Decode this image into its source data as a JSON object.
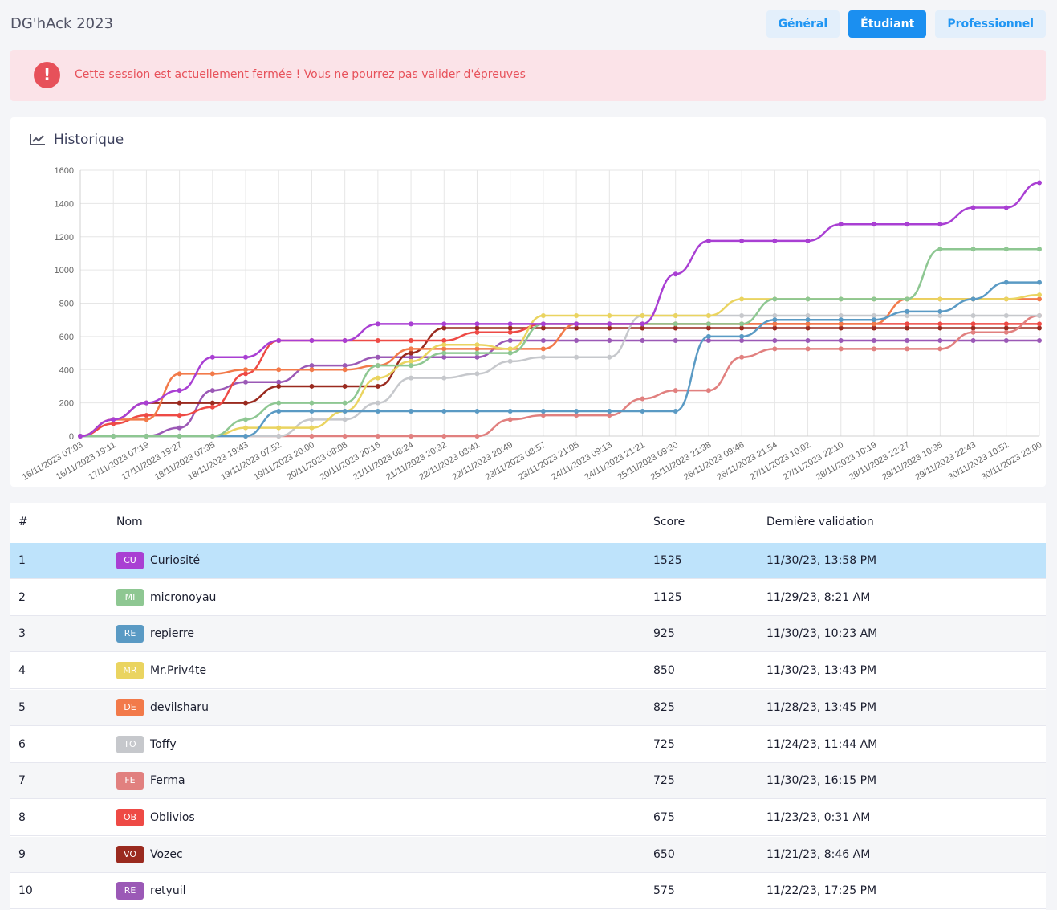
{
  "header": {
    "title": "DG'hAck 2023",
    "buttons": [
      {
        "label": "Général",
        "active": false
      },
      {
        "label": "Étudiant",
        "active": true
      },
      {
        "label": "Professionnel",
        "active": false
      }
    ]
  },
  "alert": {
    "icon": "exclamation-icon",
    "text": "Cette session est actuellement fermée ! Vous ne pourrez pas valider d'épreuves"
  },
  "chart_card": {
    "title": "Historique",
    "icon": "line-chart-icon"
  },
  "chart_data": {
    "type": "line",
    "ylim": [
      0,
      1600
    ],
    "yticks": [
      0,
      200,
      400,
      600,
      800,
      1000,
      1200,
      1400,
      1600
    ],
    "categories": [
      "16/11/2023 07:03",
      "16/11/2023 19:11",
      "17/11/2023 07:19",
      "17/11/2023 19:27",
      "18/11/2023 07:35",
      "18/11/2023 19:43",
      "19/11/2023 07:52",
      "19/11/2023 20:00",
      "20/11/2023 08:08",
      "20/11/2023 20:16",
      "21/11/2023 08:24",
      "21/11/2023 20:32",
      "22/11/2023 08:41",
      "22/11/2023 20:49",
      "23/11/2023 08:57",
      "23/11/2023 21:05",
      "24/11/2023 09:13",
      "24/11/2023 21:21",
      "25/11/2023 09:30",
      "25/11/2023 21:38",
      "26/11/2023 09:46",
      "26/11/2023 21:54",
      "27/11/2023 10:02",
      "27/11/2023 22:10",
      "28/11/2023 10:19",
      "28/11/2023 22:27",
      "29/11/2023 10:35",
      "29/11/2023 22:43",
      "30/11/2023 10:51",
      "30/11/2023 23:00"
    ],
    "series": [
      {
        "name": "Curiosité",
        "color": "#a93fd3",
        "values": [
          0,
          100,
          200,
          275,
          475,
          475,
          575,
          575,
          575,
          675,
          675,
          675,
          675,
          675,
          675,
          675,
          675,
          675,
          975,
          1175,
          1175,
          1175,
          1175,
          1275,
          1275,
          1275,
          1275,
          1375,
          1375,
          1525
        ]
      },
      {
        "name": "micronoyau",
        "color": "#8ec792",
        "values": [
          0,
          0,
          0,
          0,
          0,
          100,
          200,
          200,
          200,
          425,
          425,
          500,
          500,
          500,
          675,
          675,
          675,
          675,
          675,
          675,
          675,
          825,
          825,
          825,
          825,
          825,
          1125,
          1125,
          1125,
          1125
        ]
      },
      {
        "name": "repierre",
        "color": "#5a9ac4",
        "values": [
          0,
          0,
          0,
          0,
          0,
          0,
          150,
          150,
          150,
          150,
          150,
          150,
          150,
          150,
          150,
          150,
          150,
          150,
          150,
          600,
          600,
          700,
          700,
          700,
          700,
          750,
          750,
          825,
          925,
          925
        ]
      },
      {
        "name": "Mr.Priv4te",
        "color": "#ead460",
        "values": [
          0,
          0,
          0,
          0,
          0,
          50,
          50,
          50,
          150,
          350,
          450,
          550,
          550,
          525,
          725,
          725,
          725,
          725,
          725,
          725,
          825,
          825,
          825,
          825,
          825,
          825,
          825,
          825,
          825,
          850
        ]
      },
      {
        "name": "devilsharu",
        "color": "#f27a4a",
        "values": [
          0,
          100,
          100,
          375,
          375,
          400,
          400,
          400,
          400,
          425,
          525,
          525,
          525,
          525,
          525,
          675,
          675,
          675,
          675,
          675,
          675,
          675,
          675,
          675,
          675,
          825,
          825,
          825,
          825,
          825
        ]
      },
      {
        "name": "Toffy",
        "color": "#c6c8cc",
        "values": [
          0,
          0,
          0,
          0,
          0,
          0,
          0,
          100,
          100,
          200,
          350,
          350,
          375,
          450,
          475,
          475,
          475,
          725,
          725,
          725,
          725,
          725,
          725,
          725,
          725,
          725,
          725,
          725,
          725,
          725
        ]
      },
      {
        "name": "Ferma",
        "color": "#e1807f",
        "values": [
          0,
          0,
          0,
          0,
          0,
          0,
          0,
          0,
          0,
          0,
          0,
          0,
          0,
          100,
          125,
          125,
          125,
          225,
          275,
          275,
          475,
          525,
          525,
          525,
          525,
          525,
          525,
          625,
          625,
          725
        ]
      },
      {
        "name": "Oblivios",
        "color": "#ee4a45",
        "values": [
          0,
          75,
          125,
          125,
          175,
          375,
          575,
          575,
          575,
          575,
          575,
          575,
          625,
          625,
          675,
          675,
          675,
          675,
          675,
          675,
          675,
          675,
          675,
          675,
          675,
          675,
          675,
          675,
          675,
          675
        ]
      },
      {
        "name": "Vozec",
        "color": "#9a2a1f",
        "values": [
          0,
          100,
          200,
          200,
          200,
          200,
          300,
          300,
          300,
          300,
          500,
          650,
          650,
          650,
          650,
          650,
          650,
          650,
          650,
          650,
          650,
          650,
          650,
          650,
          650,
          650,
          650,
          650,
          650,
          650
        ]
      },
      {
        "name": "retyuil",
        "color": "#9b59b6",
        "values": [
          0,
          0,
          0,
          50,
          275,
          325,
          325,
          425,
          425,
          475,
          475,
          475,
          475,
          575,
          575,
          575,
          575,
          575,
          575,
          575,
          575,
          575,
          575,
          575,
          575,
          575,
          575,
          575,
          575,
          575
        ]
      }
    ]
  },
  "table": {
    "columns": [
      "#",
      "Nom",
      "Score",
      "Dernière validation"
    ],
    "rows": [
      {
        "rank": "1",
        "initials": "CU",
        "color": "#a93fd3",
        "name": "Curiosité",
        "score": "1525",
        "date": "11/30/23, 13:58 PM"
      },
      {
        "rank": "2",
        "initials": "MI",
        "color": "#8ec792",
        "name": "micronoyau",
        "score": "1125",
        "date": "11/29/23, 8:21 AM"
      },
      {
        "rank": "3",
        "initials": "RE",
        "color": "#5a9ac4",
        "name": "repierre",
        "score": "925",
        "date": "11/30/23, 10:23 AM"
      },
      {
        "rank": "4",
        "initials": "MR",
        "color": "#ead460",
        "name": "Mr.Priv4te",
        "score": "850",
        "date": "11/30/23, 13:43 PM"
      },
      {
        "rank": "5",
        "initials": "DE",
        "color": "#f27a4a",
        "name": "devilsharu",
        "score": "825",
        "date": "11/28/23, 13:45 PM"
      },
      {
        "rank": "6",
        "initials": "TO",
        "color": "#c6c8cc",
        "name": "Toffy",
        "score": "725",
        "date": "11/24/23, 11:44 AM"
      },
      {
        "rank": "7",
        "initials": "FE",
        "color": "#e1807f",
        "name": "Ferma",
        "score": "725",
        "date": "11/30/23, 16:15 PM"
      },
      {
        "rank": "8",
        "initials": "OB",
        "color": "#ee4a45",
        "name": "Oblivios",
        "score": "675",
        "date": "11/23/23, 0:31 AM"
      },
      {
        "rank": "9",
        "initials": "VO",
        "color": "#9a2a1f",
        "name": "Vozec",
        "score": "650",
        "date": "11/21/23, 8:46 AM"
      },
      {
        "rank": "10",
        "initials": "RE",
        "color": "#9b59b6",
        "name": "retyuil",
        "score": "575",
        "date": "11/22/23, 17:25 PM"
      }
    ]
  }
}
